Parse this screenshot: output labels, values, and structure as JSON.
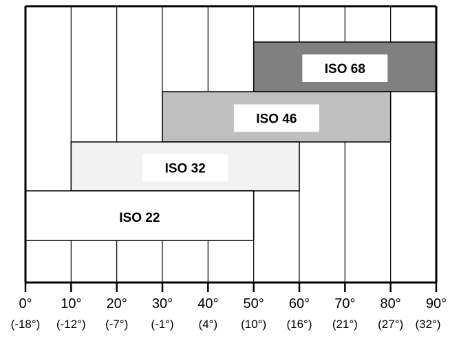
{
  "chart_data": {
    "type": "bar",
    "orientation": "horizontal-range",
    "title": "",
    "xlabel": "",
    "ylabel": "",
    "xlim": [
      0,
      90
    ],
    "grid": true,
    "x_ticks": [
      {
        "f": "0°",
        "c": "(-18°)"
      },
      {
        "f": "10°",
        "c": "(-12°)"
      },
      {
        "f": "20°",
        "c": "(-7°)"
      },
      {
        "f": "30°",
        "c": "(-1°)"
      },
      {
        "f": "40°",
        "c": "(4°)"
      },
      {
        "f": "50°",
        "c": "(10°)"
      },
      {
        "f": "60°",
        "c": "(16°)"
      },
      {
        "f": "70°",
        "c": "(21°)"
      },
      {
        "f": "80°",
        "c": "(27°)"
      },
      {
        "f": "90°",
        "c": "(32°)"
      }
    ],
    "x_tick_values": [
      0,
      10,
      20,
      30,
      40,
      50,
      60,
      70,
      80,
      90
    ],
    "series": [
      {
        "name": "ISO 68",
        "start": 50,
        "end": 90,
        "color": "#808080"
      },
      {
        "name": "ISO 46",
        "start": 30,
        "end": 80,
        "color": "#bfbfbf"
      },
      {
        "name": "ISO 32",
        "start": 10,
        "end": 60,
        "color": "#f2f2f2"
      },
      {
        "name": "ISO 22",
        "start": 0,
        "end": 50,
        "color": "#ffffff"
      }
    ]
  }
}
